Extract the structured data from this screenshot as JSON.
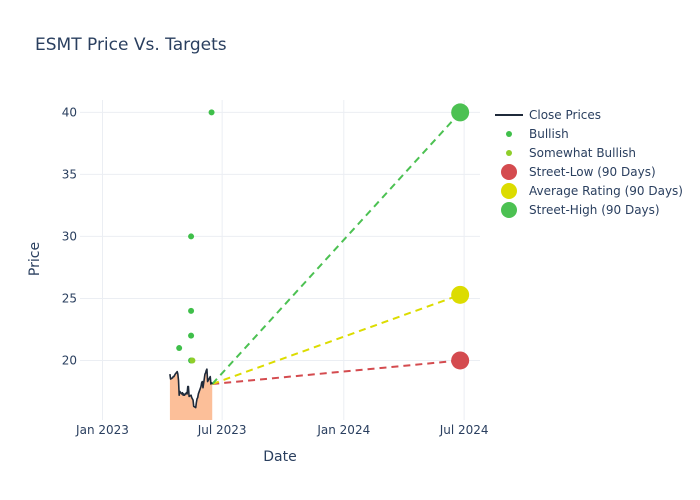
{
  "chart_data": {
    "type": "line",
    "title": "ESMT Price Vs. Targets",
    "xlabel": "Date",
    "ylabel": "Price",
    "x_axis": {
      "type": "date",
      "range": [
        "2022-11-28",
        "2024-07-25"
      ],
      "ticks": [
        {
          "value": "2023-01-01",
          "label": "Jan 2023"
        },
        {
          "value": "2023-07-01",
          "label": "Jul 2023"
        },
        {
          "value": "2024-01-01",
          "label": "Jan 2024"
        },
        {
          "value": "2024-07-01",
          "label": "Jul 2024"
        }
      ]
    },
    "y_axis": {
      "range": [
        15.2,
        41.0
      ],
      "ticks": [
        20,
        25,
        30,
        35,
        40
      ]
    },
    "grid": true,
    "legend_position": "right",
    "series": [
      {
        "name": "Close Prices",
        "kind": "line-area",
        "color": "#1f2a3a",
        "fill": "#fcbf99",
        "points": [
          [
            "2023-04-13",
            18.9
          ],
          [
            "2023-04-14",
            18.5
          ],
          [
            "2023-04-17",
            18.6
          ],
          [
            "2023-04-18",
            18.7
          ],
          [
            "2023-04-19",
            18.7
          ],
          [
            "2023-04-20",
            18.8
          ],
          [
            "2023-04-21",
            18.9
          ],
          [
            "2023-04-24",
            19.1
          ],
          [
            "2023-04-25",
            18.9
          ],
          [
            "2023-04-26",
            18.4
          ],
          [
            "2023-04-27",
            17.2
          ],
          [
            "2023-04-28",
            17.5
          ],
          [
            "2023-05-01",
            17.3
          ],
          [
            "2023-05-02",
            17.4
          ],
          [
            "2023-05-03",
            17.2
          ],
          [
            "2023-05-04",
            17.3
          ],
          [
            "2023-05-05",
            17.2
          ],
          [
            "2023-05-08",
            17.4
          ],
          [
            "2023-05-09",
            17.3
          ],
          [
            "2023-05-10",
            17.9
          ],
          [
            "2023-05-11",
            17.9
          ],
          [
            "2023-05-12",
            17.1
          ],
          [
            "2023-05-15",
            17.2
          ],
          [
            "2023-05-16",
            17.0
          ],
          [
            "2023-05-17",
            16.9
          ],
          [
            "2023-05-18",
            16.8
          ],
          [
            "2023-05-19",
            16.3
          ],
          [
            "2023-05-22",
            16.2
          ],
          [
            "2023-05-23",
            16.6
          ],
          [
            "2023-05-24",
            16.9
          ],
          [
            "2023-05-25",
            17.0
          ],
          [
            "2023-05-26",
            17.3
          ],
          [
            "2023-05-30",
            17.9
          ],
          [
            "2023-05-31",
            18.2
          ],
          [
            "2023-06-01",
            18.3
          ],
          [
            "2023-06-02",
            17.8
          ],
          [
            "2023-06-05",
            18.9
          ],
          [
            "2023-06-06",
            19.0
          ],
          [
            "2023-06-07",
            19.2
          ],
          [
            "2023-06-08",
            19.3
          ],
          [
            "2023-06-09",
            18.3
          ],
          [
            "2023-06-12",
            18.6
          ],
          [
            "2023-06-13",
            18.7
          ],
          [
            "2023-06-14",
            18.1
          ],
          [
            "2023-06-15",
            18.2
          ],
          [
            "2023-06-16",
            18.1
          ]
        ]
      },
      {
        "name": "Bullish",
        "kind": "markers",
        "color": "#3fbf4a",
        "points": [
          [
            "2023-04-27",
            21
          ],
          [
            "2023-05-15",
            30
          ],
          [
            "2023-05-15",
            24
          ],
          [
            "2023-05-15",
            22
          ],
          [
            "2023-05-15",
            20
          ],
          [
            "2023-06-15",
            40
          ]
        ]
      },
      {
        "name": "Somewhat Bullish",
        "kind": "markers",
        "color": "#8fce2a",
        "points": [
          [
            "2023-05-17",
            20
          ]
        ]
      },
      {
        "name": "Street-Low (90 Days)",
        "kind": "target",
        "color": "#d44b4f",
        "from": [
          "2023-06-16",
          18.1
        ],
        "to": [
          "2024-06-25",
          20
        ]
      },
      {
        "name": "Average Rating (90 Days)",
        "kind": "target",
        "color": "#dcdc00",
        "from": [
          "2023-06-16",
          18.1
        ],
        "to": [
          "2024-06-25",
          25.29
        ]
      },
      {
        "name": "Street-High (90 Days)",
        "kind": "target",
        "color": "#4cc152",
        "from": [
          "2023-06-16",
          18.1
        ],
        "to": [
          "2024-06-25",
          40
        ]
      }
    ]
  }
}
